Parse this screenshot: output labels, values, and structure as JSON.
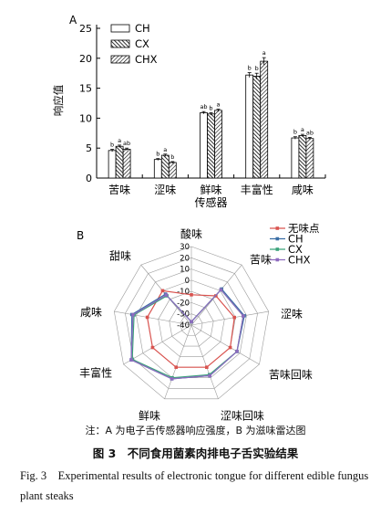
{
  "chart_data": [
    {
      "type": "bar",
      "panel_label": "A",
      "ylabel": "响应值",
      "xlabel": "传感器",
      "ylim": [
        0,
        25
      ],
      "yticks": [
        0,
        5,
        10,
        15,
        20,
        25
      ],
      "categories": [
        "苦味",
        "涩味",
        "鲜味",
        "丰富性",
        "咸味"
      ],
      "series": [
        {
          "name": "CH",
          "values": [
            4.6,
            3.1,
            10.9,
            17.2,
            6.7
          ],
          "errors": [
            0.2,
            0.15,
            0.2,
            0.4,
            0.2
          ],
          "sig": [
            "b",
            "b",
            "ab",
            "b",
            "b"
          ]
        },
        {
          "name": "CX",
          "values": [
            5.3,
            3.8,
            10.7,
            17.0,
            7.1
          ],
          "errors": [
            0.2,
            0.2,
            0.2,
            0.5,
            0.2
          ],
          "sig": [
            "a",
            "a",
            "b",
            "b",
            "a"
          ]
        },
        {
          "name": "CHX",
          "values": [
            4.8,
            2.6,
            11.3,
            19.5,
            6.6
          ],
          "errors": [
            0.2,
            0.15,
            0.2,
            0.6,
            0.2
          ],
          "sig": [
            "ab",
            "b",
            "a",
            "a",
            "ab"
          ]
        }
      ],
      "legend_position": "top-right",
      "grid": false
    },
    {
      "type": "radar",
      "panel_label": "B",
      "axes": [
        "酸味",
        "苦味",
        "涩味",
        "苦味回味",
        "涩味回味",
        "鲜味",
        "丰富性",
        "咸味",
        "甜味"
      ],
      "rlim": [
        -40,
        30
      ],
      "rticks": [
        -40,
        -30,
        -20,
        -10,
        0,
        10,
        20,
        30
      ],
      "series": [
        {
          "name": "无味点",
          "color": "#d9534f",
          "values": [
            -13,
            -6,
            -1,
            0,
            0,
            0,
            0,
            0,
            0
          ]
        },
        {
          "name": "CH",
          "color": "#3a6ea5",
          "values": [
            -37,
            2,
            8,
            7,
            8,
            11,
            22,
            14,
            -4
          ]
        },
        {
          "name": "CX",
          "color": "#3aa37a",
          "values": [
            -37,
            1,
            7,
            7,
            7,
            10,
            21,
            12,
            -6
          ]
        },
        {
          "name": "CHX",
          "color": "#8e6bbf",
          "values": [
            -37,
            1,
            7,
            7,
            8,
            11,
            22,
            13,
            -5
          ]
        }
      ],
      "legend_position": "top-right"
    }
  ],
  "note": "注：A 为电子舌传感器响应强度，B 为滋味雷达图",
  "figure_title": "图 3　不同食用菌素肉排电子舌实验结果",
  "caption_en": "Fig. 3　Experimental results of electronic tongue for different edible fungus plant steaks"
}
